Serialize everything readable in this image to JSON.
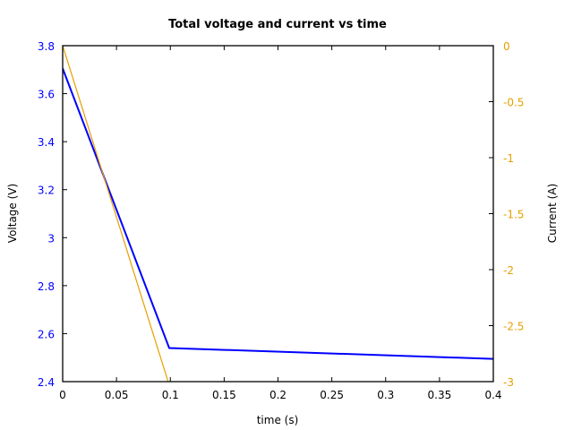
{
  "chart_data": {
    "type": "line",
    "title": "Total voltage and current vs time",
    "xlabel": "time (s)",
    "ylabel": "Voltage (V)",
    "y2label": "Current (A)",
    "xlim": [
      0,
      0.4
    ],
    "ylim": [
      2.4,
      3.8
    ],
    "y2lim": [
      -3,
      0
    ],
    "x_ticks": [
      "0",
      "0.05",
      "0.1",
      "0.15",
      "0.2",
      "0.25",
      "0.3",
      "0.35",
      "0.4"
    ],
    "y_ticks": [
      "3.8",
      "3.6",
      "3.4",
      "3.2",
      "3",
      "2.8",
      "2.6",
      "2.4"
    ],
    "y2_ticks": [
      "0",
      "-0.5",
      "-1",
      "-1.5",
      "-2",
      "-2.5",
      "-3"
    ],
    "grid": false,
    "legend": null,
    "series": [
      {
        "name": "Voltage",
        "axis": "left",
        "color": "#0000ff",
        "x": [
          0,
          0.099,
          0.4
        ],
        "values": [
          3.705,
          2.54,
          2.495
        ]
      },
      {
        "name": "Current",
        "axis": "right",
        "color": "#e69f00",
        "x": [
          0,
          0.098
        ],
        "values": [
          0,
          -3.0
        ]
      }
    ]
  },
  "colors": {
    "left_axis": "#0000ff",
    "right_axis": "#e69f00",
    "frame": "#000000"
  }
}
